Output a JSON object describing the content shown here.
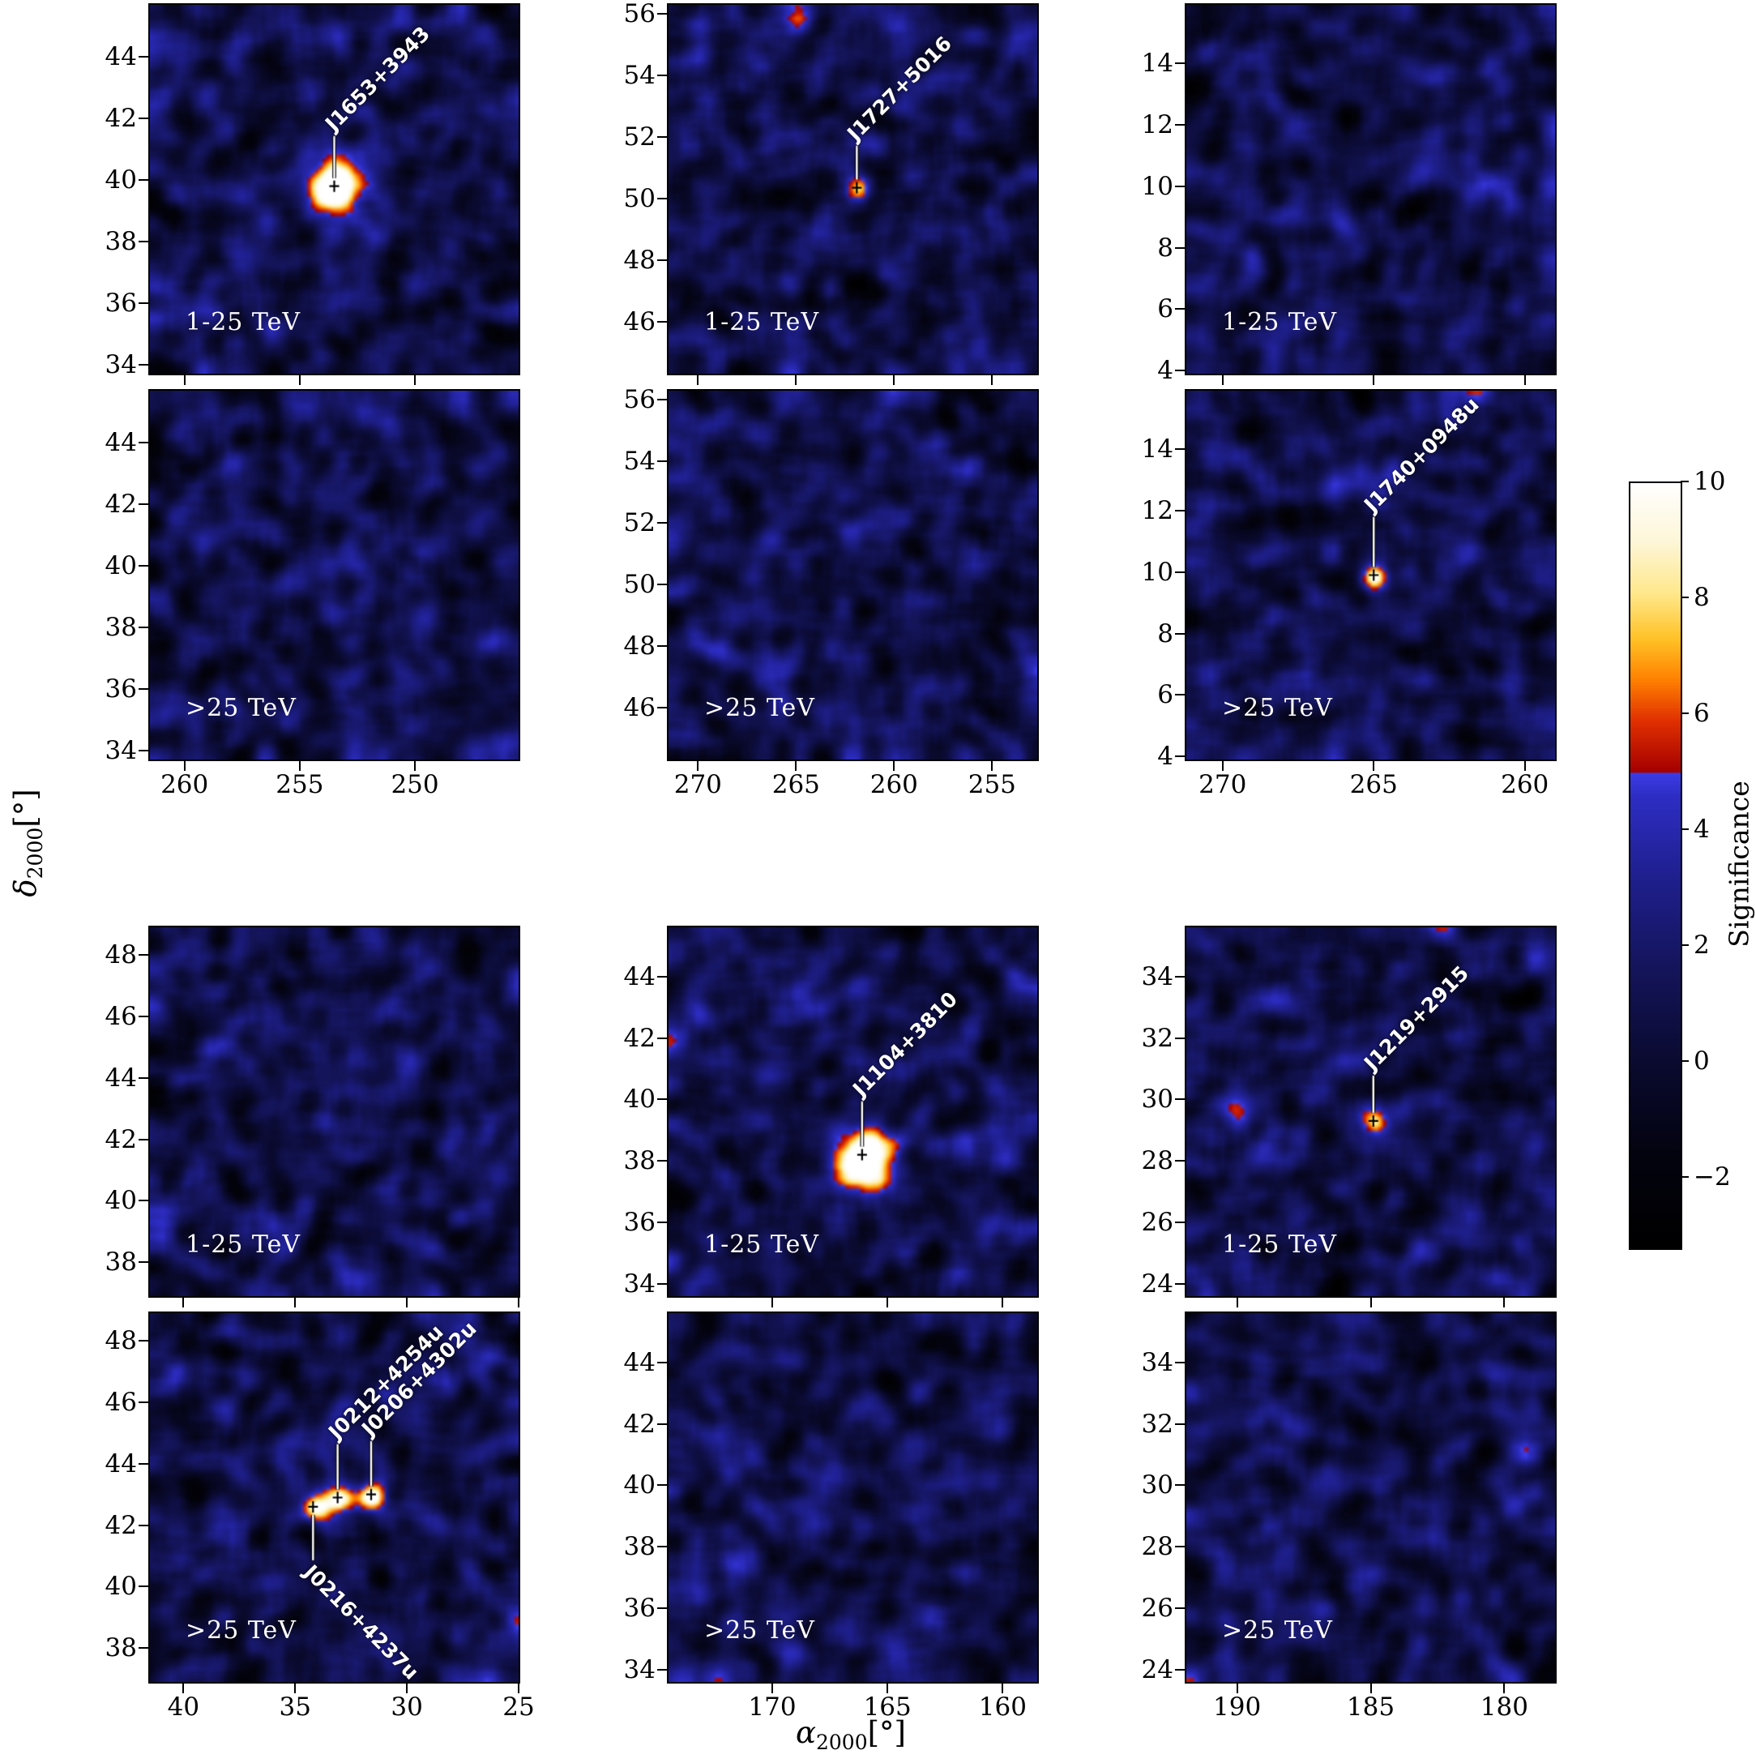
{
  "chart_data": {
    "type": "heatmap",
    "description": "Grid of gamma-ray significance sky maps in two energy bands",
    "xlabel": {
      "symbol": "α",
      "subscript": "2000",
      "unit": "[°]"
    },
    "ylabel": {
      "symbol": "δ",
      "subscript": "2000",
      "unit": "[°]"
    },
    "colorbar": {
      "label": "Significance",
      "range": [
        -3.2,
        10
      ],
      "ticks": [
        10,
        8,
        6,
        4,
        2,
        0,
        -2
      ]
    },
    "colormap_stops": [
      [
        -3.2,
        "#000000"
      ],
      [
        -1.6,
        "#03030f"
      ],
      [
        0,
        "#0a0a30"
      ],
      [
        1.6,
        "#14145a"
      ],
      [
        3.2,
        "#1f1f8e"
      ],
      [
        4.6,
        "#2d2dc4"
      ],
      [
        5.0,
        "#3c3ce8"
      ],
      [
        5.02,
        "#a50000"
      ],
      [
        5.9,
        "#e03000"
      ],
      [
        6.6,
        "#ff8000"
      ],
      [
        7.3,
        "#ffc125"
      ],
      [
        8.1,
        "#ffe88c"
      ],
      [
        9.0,
        "#fdf6d8"
      ],
      [
        10,
        "#ffffff"
      ]
    ],
    "panels": [
      {
        "id": "p0",
        "row": 0,
        "col": 0,
        "energy_label": "1-25 TeV",
        "show_x_tick_labels": false,
        "x_range": [
          261.5,
          245.5
        ],
        "x_ticks": [
          260,
          255,
          250
        ],
        "y_range": [
          45.7,
          33.7
        ],
        "y_ticks": [
          44,
          42,
          40,
          38,
          36,
          34
        ],
        "sources": [
          {
            "name": "J1653+3943",
            "ra": 253.5,
            "dec": 39.8,
            "peak": 14,
            "sigma_deg": 0.62,
            "label_dir": "up",
            "line_len": 52
          }
        ]
      },
      {
        "id": "p1",
        "row": 0,
        "col": 1,
        "energy_label": "1-25 TeV",
        "show_x_tick_labels": false,
        "x_range": [
          271.5,
          252.7
        ],
        "x_ticks": [
          270,
          265,
          260,
          255
        ],
        "y_range": [
          56.3,
          44.3
        ],
        "y_ticks": [
          56,
          54,
          52,
          50,
          48,
          46
        ],
        "sources": [
          {
            "name": "J1727+5016",
            "ra": 261.9,
            "dec": 50.35,
            "peak": 5.7,
            "sigma_deg": 0.28,
            "label_dir": "up",
            "line_len": 42
          }
        ]
      },
      {
        "id": "p2",
        "row": 0,
        "col": 2,
        "energy_label": "1-25 TeV",
        "show_x_tick_labels": false,
        "x_range": [
          271.2,
          259.0
        ],
        "x_ticks": [
          270,
          265,
          260
        ],
        "y_range": [
          15.9,
          3.9
        ],
        "y_ticks": [
          14,
          12,
          10,
          8,
          6,
          4
        ],
        "sources": []
      },
      {
        "id": "p3",
        "row": 1,
        "col": 0,
        "energy_label": ">25 TeV",
        "show_x_tick_labels": true,
        "x_range": [
          261.5,
          245.5
        ],
        "x_ticks": [
          260,
          255,
          250
        ],
        "y_range": [
          45.7,
          33.7
        ],
        "y_ticks": [
          44,
          42,
          40,
          38,
          36,
          34
        ],
        "sources": []
      },
      {
        "id": "p4",
        "row": 1,
        "col": 1,
        "energy_label": ">25 TeV",
        "show_x_tick_labels": true,
        "x_range": [
          271.5,
          252.7
        ],
        "x_ticks": [
          270,
          265,
          260,
          255
        ],
        "y_range": [
          56.3,
          44.3
        ],
        "y_ticks": [
          56,
          54,
          52,
          50,
          48,
          46
        ],
        "sources": []
      },
      {
        "id": "p5",
        "row": 1,
        "col": 2,
        "energy_label": ">25 TeV",
        "show_x_tick_labels": true,
        "x_range": [
          271.2,
          259.0
        ],
        "x_ticks": [
          270,
          265,
          260
        ],
        "y_range": [
          15.9,
          3.9
        ],
        "y_ticks": [
          14,
          12,
          10,
          8,
          6,
          4
        ],
        "sources": [
          {
            "name": "J1740+0948u",
            "ra": 265.0,
            "dec": 9.9,
            "peak": 10.5,
            "sigma_deg": 0.3,
            "label_dir": "up",
            "line_len": 62
          }
        ]
      },
      {
        "id": "p6",
        "row": 2,
        "col": 0,
        "energy_label": "1-25 TeV",
        "show_x_tick_labels": false,
        "x_range": [
          41.5,
          25.0
        ],
        "x_ticks": [
          40,
          35,
          30,
          25
        ],
        "y_range": [
          48.9,
          36.9
        ],
        "y_ticks": [
          48,
          46,
          44,
          42,
          40,
          38
        ],
        "sources": []
      },
      {
        "id": "p7",
        "row": 2,
        "col": 1,
        "energy_label": "1-25 TeV",
        "show_x_tick_labels": false,
        "x_range": [
          174.5,
          158.5
        ],
        "x_ticks": [
          170,
          165,
          160
        ],
        "y_range": [
          45.6,
          33.6
        ],
        "y_ticks": [
          44,
          42,
          40,
          38,
          36,
          34
        ],
        "sources": [
          {
            "name": "J1104+3810",
            "ra": 166.1,
            "dec": 38.2,
            "peak": 14,
            "sigma_deg": 0.65,
            "label_dir": "up",
            "line_len": 56
          }
        ]
      },
      {
        "id": "p8",
        "row": 2,
        "col": 2,
        "energy_label": "1-25 TeV",
        "show_x_tick_labels": false,
        "x_range": [
          191.9,
          178.1
        ],
        "x_ticks": [
          190,
          185,
          180
        ],
        "y_range": [
          35.6,
          23.6
        ],
        "y_ticks": [
          34,
          32,
          30,
          28,
          26,
          24
        ],
        "sources": [
          {
            "name": "J1219+2915",
            "ra": 184.9,
            "dec": 29.3,
            "peak": 6.6,
            "sigma_deg": 0.28,
            "label_dir": "up",
            "line_len": 46
          }
        ]
      },
      {
        "id": "p9",
        "row": 3,
        "col": 0,
        "energy_label": ">25 TeV",
        "show_x_tick_labels": true,
        "x_range": [
          41.5,
          25.0
        ],
        "x_ticks": [
          40,
          35,
          30,
          25
        ],
        "y_range": [
          48.9,
          36.9
        ],
        "y_ticks": [
          48,
          46,
          44,
          42,
          40,
          38
        ],
        "sources": [
          {
            "name": "J0212+4254u",
            "ra": 33.1,
            "dec": 42.9,
            "peak": 9.0,
            "sigma_deg": 0.3,
            "label_dir": "up",
            "line_len": 56
          },
          {
            "name": "J0206+4302u",
            "ra": 31.6,
            "dec": 43.0,
            "peak": 8.4,
            "sigma_deg": 0.3,
            "label_dir": "up",
            "line_len": 56
          },
          {
            "name": "J0216+4237u",
            "ra": 34.2,
            "dec": 42.6,
            "peak": 8.2,
            "sigma_deg": 0.3,
            "label_dir": "down",
            "line_len": 56
          }
        ]
      },
      {
        "id": "p10",
        "row": 3,
        "col": 1,
        "energy_label": ">25 TeV",
        "show_x_tick_labels": true,
        "x_range": [
          174.5,
          158.5
        ],
        "x_ticks": [
          170,
          165,
          160
        ],
        "y_range": [
          45.6,
          33.6
        ],
        "y_ticks": [
          44,
          42,
          40,
          38,
          36,
          34
        ],
        "sources": []
      },
      {
        "id": "p11",
        "row": 3,
        "col": 2,
        "energy_label": ">25 TeV",
        "show_x_tick_labels": true,
        "x_range": [
          191.9,
          178.1
        ],
        "x_ticks": [
          190,
          185,
          180
        ],
        "y_range": [
          35.6,
          23.6
        ],
        "y_ticks": [
          34,
          32,
          30,
          28,
          26,
          24
        ],
        "sources": []
      }
    ]
  }
}
